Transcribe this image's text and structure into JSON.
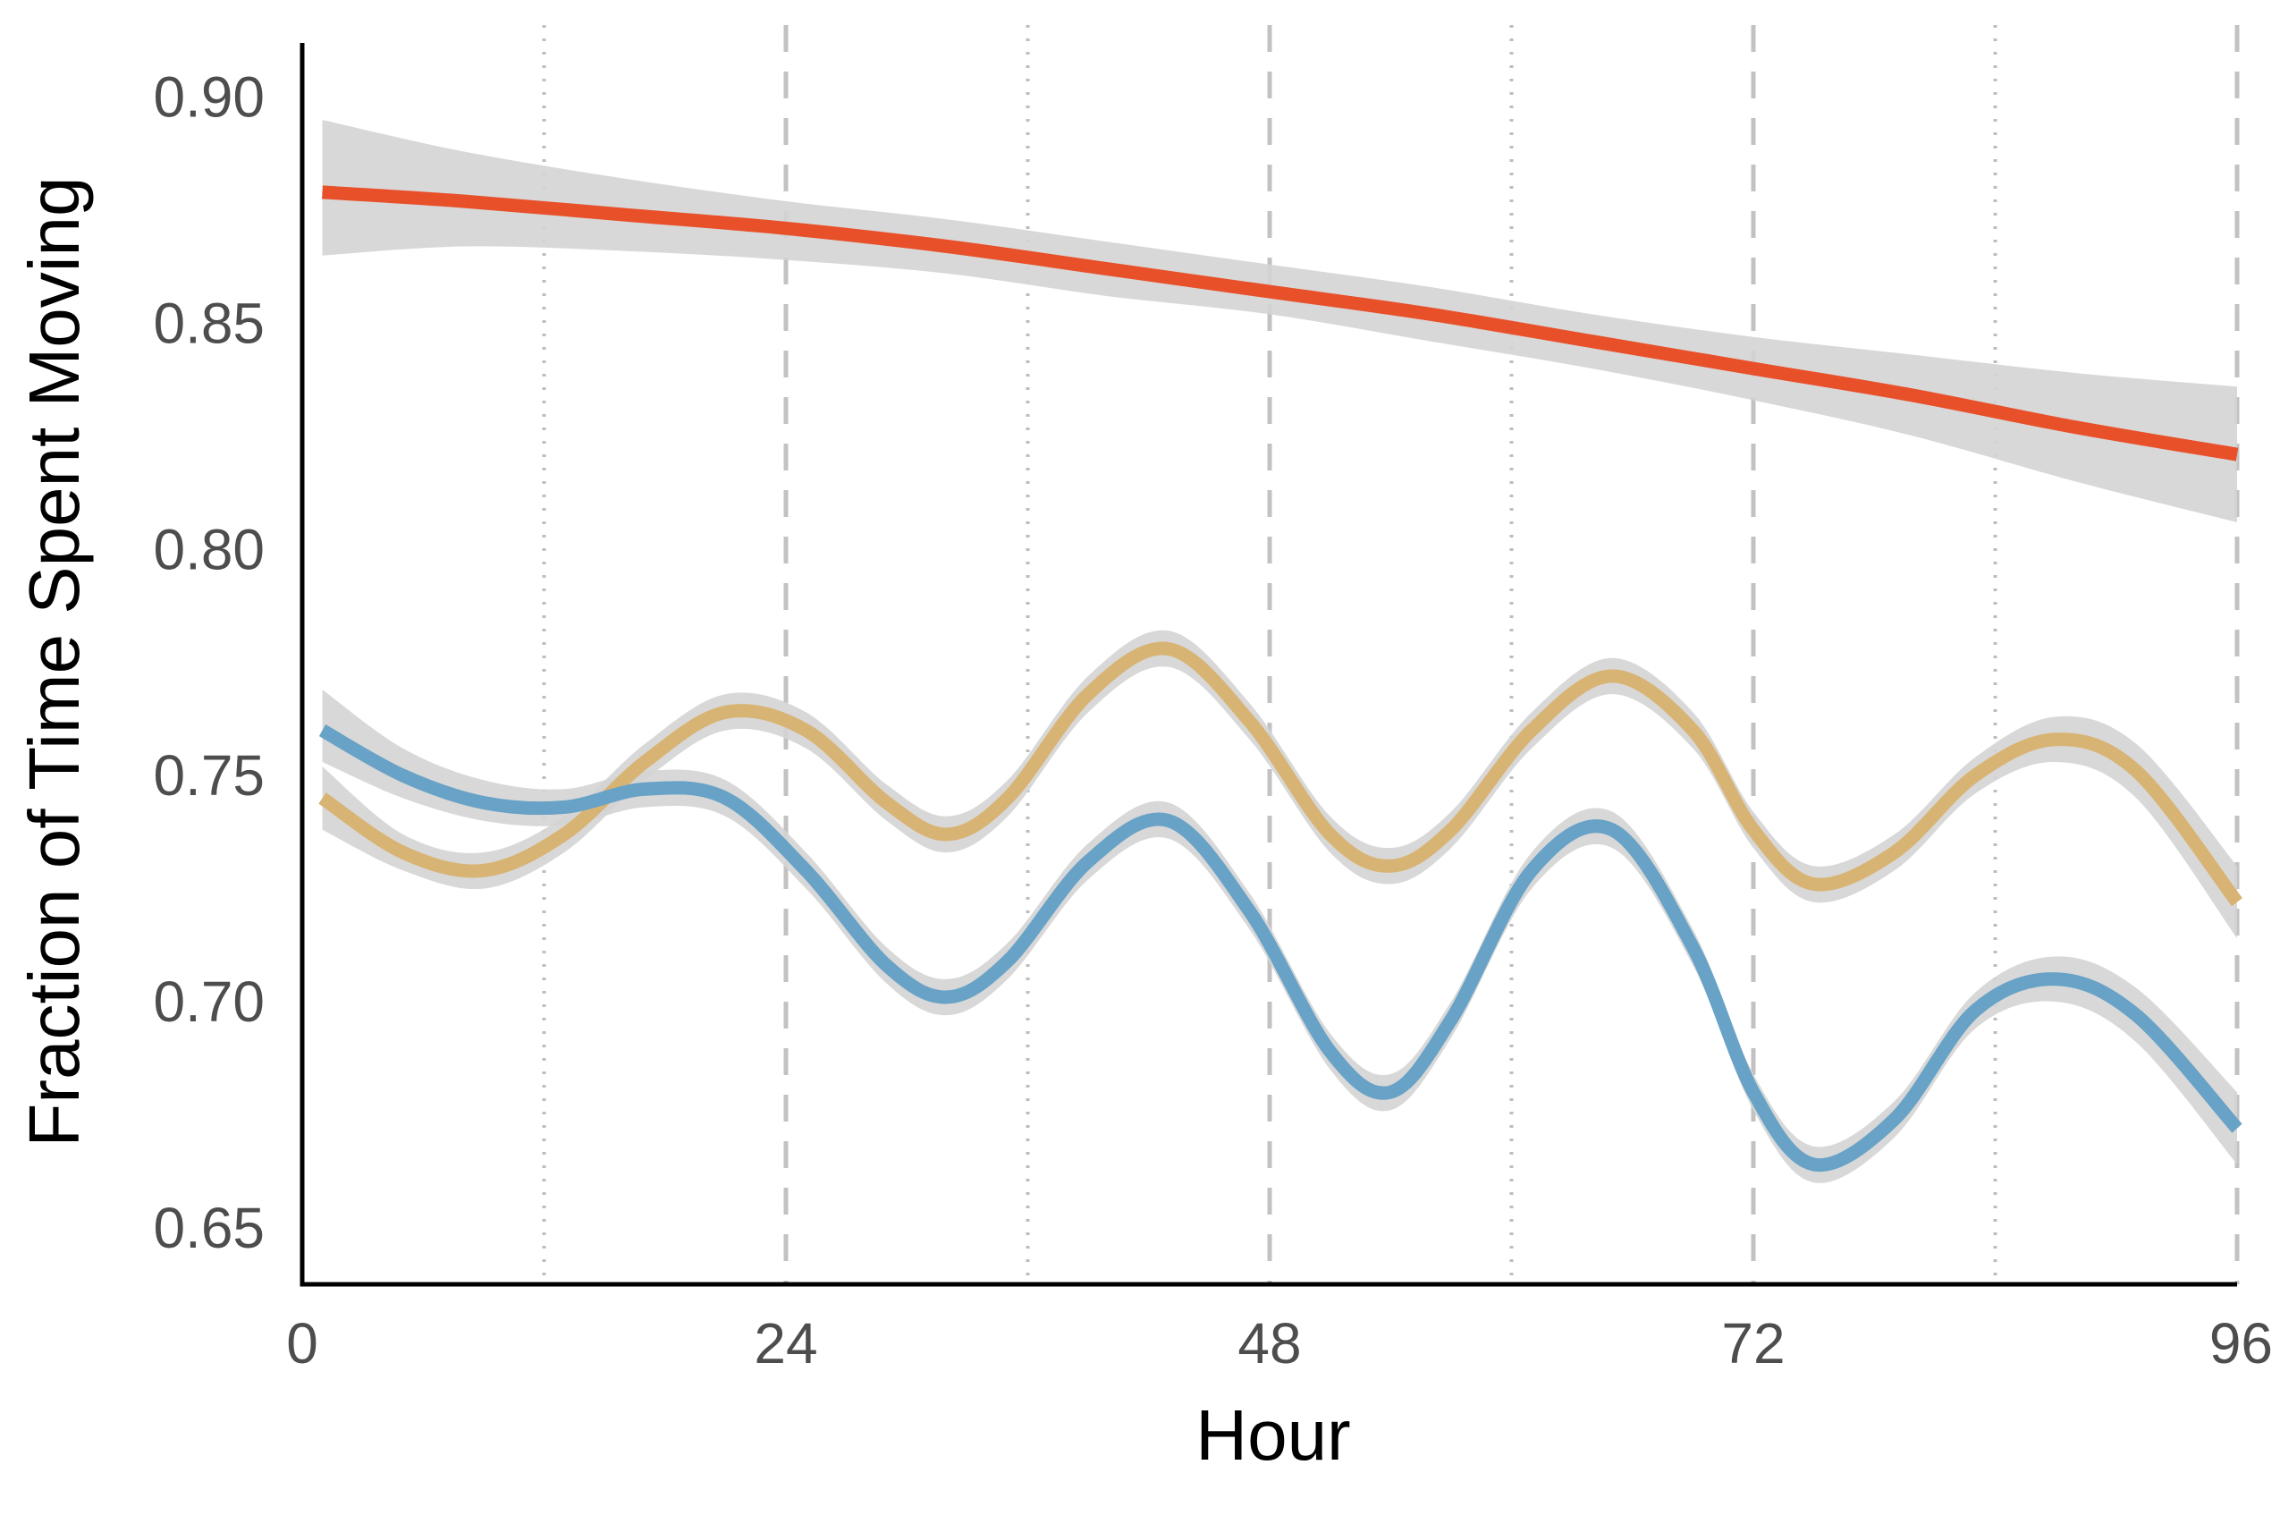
{
  "chart_data": {
    "type": "line",
    "title": "",
    "xlabel": "Hour",
    "ylabel": "Fraction of Time Spent Moving",
    "xlim": [
      0,
      96
    ],
    "ylim": [
      0.6375,
      0.912
    ],
    "x_ticks": [
      0,
      24,
      48,
      72,
      96
    ],
    "x_tick_labels": [
      "0",
      "24",
      "48",
      "72",
      "96"
    ],
    "y_ticks": [
      0.65,
      0.7,
      0.75,
      0.8,
      0.85,
      0.9
    ],
    "y_tick_labels": [
      "0.65",
      "0.70",
      "0.75",
      "0.80",
      "0.85",
      "0.90"
    ],
    "major_vlines": [
      24,
      48,
      72,
      96
    ],
    "minor_vlines": [
      12,
      36,
      60,
      84
    ],
    "grid": false,
    "legend": "none",
    "series": [
      {
        "color": "#e8502a",
        "band_color": "#d4d4d4",
        "x": [
          1,
          8,
          16,
          24,
          32,
          40,
          48,
          56,
          64,
          72,
          80,
          88,
          96
        ],
        "y": [
          0.879,
          0.877,
          0.874,
          0.871,
          0.867,
          0.862,
          0.857,
          0.852,
          0.846,
          0.84,
          0.834,
          0.827,
          0.821
        ],
        "lower": [
          0.865,
          0.867,
          0.866,
          0.864,
          0.861,
          0.856,
          0.852,
          0.846,
          0.84,
          0.833,
          0.825,
          0.815,
          0.806
        ],
        "upper": [
          0.895,
          0.888,
          0.882,
          0.877,
          0.873,
          0.868,
          0.863,
          0.858,
          0.852,
          0.847,
          0.843,
          0.839,
          0.836
        ]
      },
      {
        "color": "#d8b474",
        "band_color": "#d4d4d4",
        "x": [
          1,
          5,
          9,
          13,
          17,
          21,
          25,
          29,
          32,
          35,
          39,
          43,
          47,
          51,
          54,
          57,
          61,
          65,
          69,
          72,
          75,
          79,
          83,
          87,
          91,
          96
        ],
        "y": [
          0.745,
          0.733,
          0.729,
          0.737,
          0.753,
          0.764,
          0.76,
          0.744,
          0.737,
          0.745,
          0.768,
          0.778,
          0.762,
          0.737,
          0.73,
          0.738,
          0.76,
          0.772,
          0.76,
          0.738,
          0.726,
          0.733,
          0.75,
          0.758,
          0.751,
          0.722
        ],
        "lower": [
          0.738,
          0.729,
          0.725,
          0.733,
          0.749,
          0.76,
          0.756,
          0.74,
          0.733,
          0.741,
          0.764,
          0.774,
          0.758,
          0.733,
          0.726,
          0.734,
          0.756,
          0.768,
          0.756,
          0.734,
          0.722,
          0.729,
          0.746,
          0.753,
          0.745,
          0.714
        ],
        "upper": [
          0.752,
          0.737,
          0.733,
          0.741,
          0.757,
          0.768,
          0.764,
          0.748,
          0.741,
          0.749,
          0.772,
          0.782,
          0.766,
          0.741,
          0.734,
          0.742,
          0.764,
          0.776,
          0.764,
          0.742,
          0.73,
          0.737,
          0.754,
          0.763,
          0.757,
          0.73
        ]
      },
      {
        "color": "#68a2c6",
        "band_color": "#d4d4d4",
        "x": [
          1,
          5,
          9,
          13,
          17,
          21,
          25,
          29,
          32,
          35,
          39,
          43,
          47,
          51,
          54,
          57,
          61,
          65,
          69,
          72,
          75,
          79,
          83,
          87,
          91,
          96
        ],
        "y": [
          0.76,
          0.75,
          0.744,
          0.743,
          0.747,
          0.745,
          0.729,
          0.708,
          0.701,
          0.709,
          0.731,
          0.74,
          0.72,
          0.689,
          0.68,
          0.696,
          0.729,
          0.738,
          0.712,
          0.68,
          0.664,
          0.674,
          0.698,
          0.705,
          0.697,
          0.672
        ],
        "lower": [
          0.753,
          0.745,
          0.74,
          0.739,
          0.743,
          0.741,
          0.725,
          0.704,
          0.697,
          0.705,
          0.727,
          0.736,
          0.716,
          0.685,
          0.676,
          0.692,
          0.725,
          0.734,
          0.708,
          0.676,
          0.66,
          0.67,
          0.694,
          0.7,
          0.691,
          0.664
        ],
        "upper": [
          0.769,
          0.756,
          0.749,
          0.747,
          0.751,
          0.749,
          0.733,
          0.712,
          0.705,
          0.713,
          0.735,
          0.744,
          0.724,
          0.693,
          0.684,
          0.7,
          0.733,
          0.742,
          0.716,
          0.684,
          0.668,
          0.678,
          0.702,
          0.71,
          0.703,
          0.68
        ]
      }
    ]
  }
}
